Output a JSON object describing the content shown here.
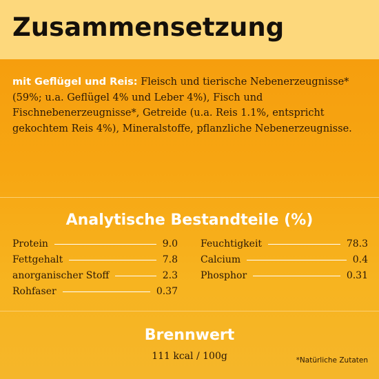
{
  "header": {
    "title": "Zusammensetzung"
  },
  "composition": {
    "lead": "mit Geflügel und Reis:",
    "text": "Fleisch und tierische Nebenerzeugnisse* (59%; u.a. Geflügel 4% und Leber 4%), Fisch und Fischnebenerzeugnisse*, Getreide (u.a. Reis 1.1%, entspricht gekochtem Reis 4%), Mineralstoffe, pflanzliche Nebenerzeugnisse."
  },
  "analysis": {
    "title": "Analytische Bestandteile (%)",
    "left": [
      {
        "label": "Protein",
        "value": "9.0"
      },
      {
        "label": "Fettgehalt",
        "value": "7.8"
      },
      {
        "label": "anorganischer Stoff",
        "value": "2.3"
      },
      {
        "label": "Rohfaser",
        "value": "0.37"
      }
    ],
    "right": [
      {
        "label": "Feuchtigkeit",
        "value": "78.3"
      },
      {
        "label": "Calcium",
        "value": "0.4"
      },
      {
        "label": "Phosphor",
        "value": "0.31"
      }
    ]
  },
  "energy": {
    "title": "Brennwert",
    "value": "111 kcal / 100g"
  },
  "footnote": "*Natürliche Zutaten",
  "colors": {
    "title_band": "#fdd87c",
    "background": "#f7a612",
    "heading_text": "#ffffff",
    "body_text": "#2a1806"
  }
}
